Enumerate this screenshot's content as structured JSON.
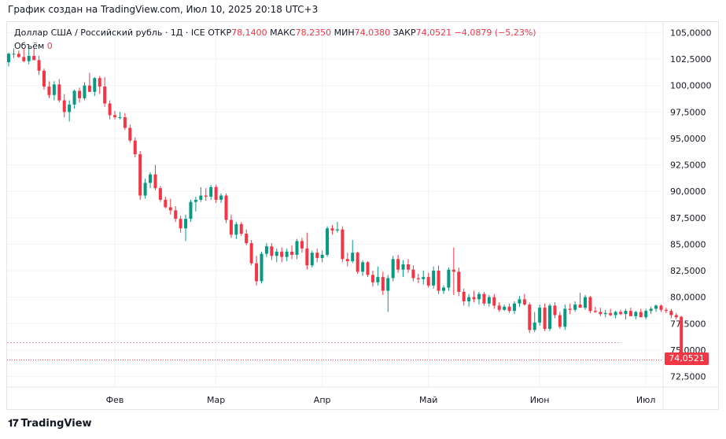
{
  "caption": "График создан на TradingView.com, Июл 10, 2025 20:18 UTC+3",
  "legend": {
    "symbol": "Доллар США / Российский рубль · 1Д · ICE",
    "open_label": "ОТКР",
    "open_value": "78,1400",
    "high_label": "МАКС",
    "high_value": "78,2350",
    "low_label": "МИН",
    "low_value": "74,0380",
    "close_label": "ЗАКР",
    "close_value": "74,0521",
    "change": "−4,0879 (−5,23%)",
    "volume_label": "Объём",
    "volume_value": "0"
  },
  "last_price_tag": "74,0521",
  "footer": {
    "brand": "TradingView"
  },
  "colors": {
    "up": "#089981",
    "down": "#f23645",
    "grid": "#f0f3fa"
  },
  "chart_data": {
    "type": "candlestick",
    "ylim": [
      71.5,
      106.0
    ],
    "y_ticks": [
      72.5,
      75.0,
      77.5,
      80.0,
      82.5,
      85.0,
      87.5,
      90.0,
      92.5,
      95.0,
      97.5,
      100.0,
      102.5,
      105.0
    ],
    "y_tick_labels": [
      "72,5000",
      "75,0000",
      "77,5000",
      "80,0000",
      "82,5000",
      "85,0000",
      "87,5000",
      "90,0000",
      "92,5000",
      "95,0000",
      "97,5000",
      "100,0000",
      "102,5000",
      "105,0000"
    ],
    "x_ticks": [
      {
        "label": "Фев",
        "index": 21
      },
      {
        "label": "Мар",
        "index": 41
      },
      {
        "label": "Апр",
        "index": 62
      },
      {
        "label": "Май",
        "index": 83
      },
      {
        "label": "Июн",
        "index": 105
      },
      {
        "label": "Июл",
        "index": 126
      }
    ],
    "last_price": 74.0521,
    "reference_price": 75.7,
    "candles": [
      [
        102.2,
        103.1,
        101.8,
        103.0
      ],
      [
        103.0,
        103.5,
        102.6,
        103.0
      ],
      [
        103.0,
        103.3,
        102.6,
        102.7
      ],
      [
        102.7,
        103.5,
        102.2,
        102.3
      ],
      [
        102.3,
        103.6,
        102.0,
        102.8
      ],
      [
        102.8,
        103.5,
        102.4,
        102.4
      ],
      [
        102.4,
        102.8,
        101.0,
        101.4
      ],
      [
        101.4,
        101.6,
        99.6,
        99.9
      ],
      [
        99.9,
        100.4,
        98.8,
        99.1
      ],
      [
        99.1,
        100.4,
        98.6,
        100.1
      ],
      [
        100.1,
        100.6,
        98.4,
        98.6
      ],
      [
        98.6,
        99.2,
        97.0,
        97.5
      ],
      [
        97.5,
        98.6,
        96.6,
        98.2
      ],
      [
        98.2,
        99.6,
        97.8,
        99.5
      ],
      [
        99.5,
        99.8,
        98.4,
        98.8
      ],
      [
        98.8,
        100.3,
        98.6,
        100.0
      ],
      [
        100.0,
        101.2,
        99.4,
        99.4
      ],
      [
        99.4,
        100.8,
        99.0,
        100.7
      ],
      [
        100.7,
        100.9,
        99.2,
        99.9
      ],
      [
        99.9,
        100.8,
        98.0,
        98.3
      ],
      [
        98.3,
        98.6,
        96.8,
        97.2
      ],
      [
        97.2,
        97.6,
        96.8,
        97.0
      ],
      [
        97.0,
        97.5,
        96.8,
        97.0
      ],
      [
        97.0,
        97.4,
        95.8,
        96.0
      ],
      [
        96.0,
        96.3,
        94.6,
        94.8
      ],
      [
        94.8,
        95.1,
        93.2,
        93.5
      ],
      [
        93.5,
        93.8,
        89.2,
        89.6
      ],
      [
        89.6,
        91.2,
        89.3,
        90.8
      ],
      [
        90.8,
        91.8,
        90.3,
        91.6
      ],
      [
        91.6,
        92.5,
        90.1,
        90.3
      ],
      [
        90.3,
        90.5,
        89.0,
        89.2
      ],
      [
        89.2,
        89.5,
        88.4,
        88.5
      ],
      [
        88.5,
        89.3,
        87.8,
        88.2
      ],
      [
        88.2,
        88.6,
        87.1,
        87.4
      ],
      [
        87.4,
        87.7,
        86.1,
        86.5
      ],
      [
        86.5,
        87.8,
        85.3,
        87.4
      ],
      [
        87.4,
        89.2,
        87.1,
        89.0
      ],
      [
        89.0,
        89.5,
        88.1,
        89.2
      ],
      [
        89.2,
        90.4,
        89.0,
        89.6
      ],
      [
        89.6,
        90.3,
        89.1,
        89.5
      ],
      [
        89.5,
        90.6,
        89.2,
        90.4
      ],
      [
        90.4,
        90.6,
        88.9,
        89.2
      ],
      [
        89.2,
        89.8,
        88.9,
        89.6
      ],
      [
        89.6,
        89.8,
        87.0,
        87.3
      ],
      [
        87.3,
        87.8,
        85.6,
        85.9
      ],
      [
        85.9,
        87.1,
        85.5,
        86.9
      ],
      [
        86.9,
        87.1,
        85.8,
        86.0
      ],
      [
        86.0,
        86.4,
        84.9,
        85.1
      ],
      [
        85.1,
        85.4,
        83.0,
        83.2
      ],
      [
        83.2,
        83.9,
        81.1,
        81.5
      ],
      [
        81.5,
        84.3,
        81.3,
        84.1
      ],
      [
        84.1,
        85.1,
        83.8,
        84.8
      ],
      [
        84.8,
        85.1,
        83.5,
        83.9
      ],
      [
        83.9,
        84.6,
        83.3,
        84.3
      ],
      [
        84.3,
        84.7,
        83.3,
        83.8
      ],
      [
        83.8,
        84.6,
        83.4,
        84.3
      ],
      [
        84.3,
        84.9,
        83.6,
        84.0
      ],
      [
        84.0,
        85.5,
        83.6,
        85.3
      ],
      [
        85.3,
        85.6,
        84.2,
        84.6
      ],
      [
        84.6,
        86.1,
        82.6,
        83.0
      ],
      [
        83.0,
        84.4,
        82.8,
        84.2
      ],
      [
        84.2,
        84.6,
        83.3,
        83.7
      ],
      [
        83.7,
        84.4,
        83.3,
        84.0
      ],
      [
        84.0,
        86.7,
        83.8,
        86.5
      ],
      [
        86.5,
        86.8,
        85.9,
        86.3
      ],
      [
        86.3,
        87.1,
        86.1,
        86.4
      ],
      [
        86.4,
        86.7,
        83.3,
        83.6
      ],
      [
        83.6,
        84.2,
        82.9,
        83.4
      ],
      [
        83.4,
        85.4,
        83.2,
        84.2
      ],
      [
        84.2,
        84.3,
        82.2,
        82.4
      ],
      [
        82.4,
        83.5,
        82.0,
        83.3
      ],
      [
        83.3,
        83.4,
        81.9,
        82.1
      ],
      [
        82.1,
        82.5,
        81.0,
        81.4
      ],
      [
        81.4,
        82.9,
        81.1,
        81.9
      ],
      [
        81.9,
        82.4,
        80.2,
        80.6
      ],
      [
        80.6,
        82.1,
        78.6,
        81.8
      ],
      [
        81.8,
        83.9,
        81.5,
        83.6
      ],
      [
        83.6,
        84.0,
        82.3,
        82.6
      ],
      [
        82.6,
        83.5,
        81.9,
        83.1
      ],
      [
        83.1,
        83.6,
        82.3,
        82.6
      ],
      [
        82.6,
        83.0,
        81.5,
        81.8
      ],
      [
        81.8,
        82.2,
        81.3,
        81.7
      ],
      [
        81.7,
        82.5,
        81.2,
        81.9
      ],
      [
        81.9,
        82.3,
        80.9,
        81.1
      ],
      [
        81.1,
        82.9,
        80.8,
        82.5
      ],
      [
        82.5,
        83.0,
        80.3,
        80.6
      ],
      [
        80.6,
        81.1,
        80.3,
        80.9
      ],
      [
        80.9,
        82.8,
        80.6,
        82.6
      ],
      [
        82.6,
        84.7,
        80.2,
        82.4
      ],
      [
        82.4,
        82.8,
        80.1,
        80.5
      ],
      [
        80.5,
        80.8,
        79.2,
        79.6
      ],
      [
        79.6,
        80.3,
        79.1,
        80.0
      ],
      [
        80.0,
        80.6,
        79.5,
        79.8
      ],
      [
        79.8,
        80.5,
        79.3,
        80.3
      ],
      [
        80.3,
        80.5,
        79.2,
        79.4
      ],
      [
        79.4,
        80.2,
        79.1,
        80.0
      ],
      [
        80.0,
        80.3,
        78.9,
        79.2
      ],
      [
        79.2,
        79.5,
        78.6,
        78.8
      ],
      [
        78.8,
        79.3,
        78.7,
        79.1
      ],
      [
        79.1,
        79.4,
        78.5,
        78.7
      ],
      [
        78.7,
        79.6,
        78.4,
        79.4
      ],
      [
        79.4,
        80.1,
        79.1,
        79.8
      ],
      [
        79.8,
        80.3,
        79.2,
        79.3
      ],
      [
        79.3,
        79.5,
        76.6,
        76.9
      ],
      [
        76.9,
        78.6,
        76.7,
        77.6
      ],
      [
        77.6,
        79.3,
        77.3,
        79.0
      ],
      [
        79.0,
        79.4,
        76.8,
        77.0
      ],
      [
        77.0,
        79.4,
        76.8,
        79.2
      ],
      [
        79.2,
        79.5,
        78.0,
        78.3
      ],
      [
        78.3,
        78.6,
        77.0,
        77.2
      ],
      [
        77.2,
        79.3,
        76.9,
        78.9
      ],
      [
        78.9,
        79.4,
        78.4,
        78.8
      ],
      [
        78.8,
        79.6,
        78.6,
        79.3
      ],
      [
        79.3,
        80.4,
        79.0,
        79.0
      ],
      [
        79.0,
        80.2,
        78.8,
        80.0
      ],
      [
        80.0,
        80.1,
        78.5,
        78.7
      ],
      [
        78.7,
        79.1,
        78.5,
        78.6
      ],
      [
        78.6,
        79.0,
        78.2,
        78.4
      ],
      [
        78.4,
        78.8,
        78.1,
        78.5
      ],
      [
        78.5,
        78.9,
        78.2,
        78.3
      ],
      [
        78.3,
        78.7,
        78.0,
        78.6
      ],
      [
        78.6,
        78.8,
        78.3,
        78.4
      ],
      [
        78.4,
        78.9,
        77.9,
        78.7
      ],
      [
        78.7,
        79.0,
        78.3,
        78.2
      ],
      [
        78.2,
        78.7,
        77.9,
        78.6
      ],
      [
        78.6,
        78.9,
        78.1,
        78.1
      ],
      [
        78.1,
        78.9,
        77.9,
        78.7
      ],
      [
        78.7,
        79.1,
        78.4,
        78.9
      ],
      [
        78.9,
        79.3,
        78.6,
        79.2
      ],
      [
        79.2,
        79.3,
        78.6,
        78.8
      ],
      [
        78.8,
        79.0,
        78.5,
        78.7
      ],
      [
        78.7,
        78.9,
        78.0,
        78.3
      ],
      [
        78.3,
        78.5,
        77.9,
        78.1
      ],
      [
        78.14,
        78.235,
        74.038,
        74.0521
      ]
    ]
  }
}
